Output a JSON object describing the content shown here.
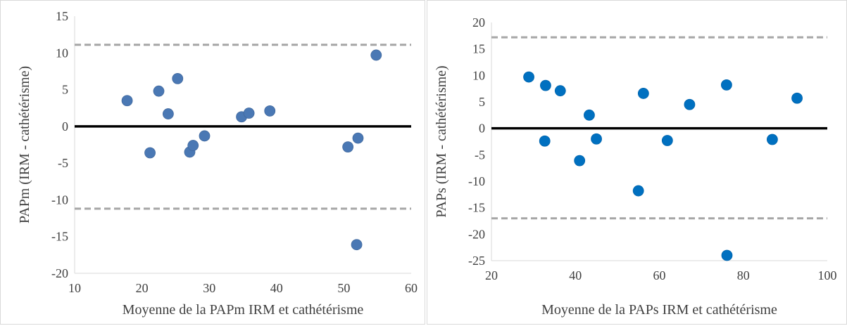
{
  "chart_data": [
    {
      "type": "scatter",
      "title": "",
      "xlabel": "Moyenne de la PAPm IRM et cathétérisme",
      "ylabel": "PAPm (IRM - cathétérisme)",
      "xlim": [
        10,
        60
      ],
      "ylim": [
        -20,
        15
      ],
      "xticks": [
        "10",
        "20",
        "30",
        "40",
        "50",
        "60"
      ],
      "yticks": [
        "-20",
        "-15",
        "-10",
        "-5",
        "0",
        "5",
        "10",
        "15"
      ],
      "grid": false,
      "mean_line": 0,
      "limits_of_agreement": [
        11.1,
        -11.2
      ],
      "colors": {
        "points": "#4a78b4",
        "mean_line": "#000000",
        "limit_lines": "#a6a6a6"
      },
      "points": [
        {
          "x": 17.8,
          "y": 3.5
        },
        {
          "x": 21.2,
          "y": -3.6
        },
        {
          "x": 22.5,
          "y": 4.8
        },
        {
          "x": 23.9,
          "y": 1.7
        },
        {
          "x": 25.3,
          "y": 6.5
        },
        {
          "x": 27.1,
          "y": -3.5
        },
        {
          "x": 27.6,
          "y": -2.6
        },
        {
          "x": 29.3,
          "y": -1.3
        },
        {
          "x": 34.8,
          "y": 1.3
        },
        {
          "x": 35.9,
          "y": 1.8
        },
        {
          "x": 39.0,
          "y": 2.1
        },
        {
          "x": 50.6,
          "y": -2.8
        },
        {
          "x": 52.1,
          "y": -1.6
        },
        {
          "x": 51.9,
          "y": -16.1
        },
        {
          "x": 54.8,
          "y": 9.7
        }
      ]
    },
    {
      "type": "scatter",
      "title": "",
      "xlabel": "Moyenne de la PAPs IRM et cathétérisme",
      "ylabel": "PAPs (IRM - cathétérisme)",
      "xlim": [
        20,
        100
      ],
      "ylim": [
        -25,
        20
      ],
      "xticks": [
        "20",
        "40",
        "60",
        "80",
        "100"
      ],
      "yticks": [
        "-25",
        "-20",
        "-15",
        "-10",
        "-5",
        "0",
        "5",
        "10",
        "15",
        "20"
      ],
      "grid": false,
      "mean_line": 0,
      "limits_of_agreement": [
        17.2,
        -17.0
      ],
      "colors": {
        "points": "#0070c0",
        "mean_line": "#000000",
        "limit_lines": "#a6a6a6"
      },
      "points": [
        {
          "x": 28.9,
          "y": 9.7
        },
        {
          "x": 32.7,
          "y": -2.4
        },
        {
          "x": 32.9,
          "y": 8.1
        },
        {
          "x": 36.4,
          "y": 7.1
        },
        {
          "x": 41.0,
          "y": -6.1
        },
        {
          "x": 43.3,
          "y": 2.5
        },
        {
          "x": 45.0,
          "y": -2.0
        },
        {
          "x": 55.0,
          "y": -11.8
        },
        {
          "x": 56.2,
          "y": 6.6
        },
        {
          "x": 61.9,
          "y": -2.3
        },
        {
          "x": 67.2,
          "y": 4.5
        },
        {
          "x": 76.0,
          "y": 8.2
        },
        {
          "x": 76.1,
          "y": -24.0
        },
        {
          "x": 86.9,
          "y": -2.1
        },
        {
          "x": 92.8,
          "y": 5.7
        }
      ]
    }
  ]
}
